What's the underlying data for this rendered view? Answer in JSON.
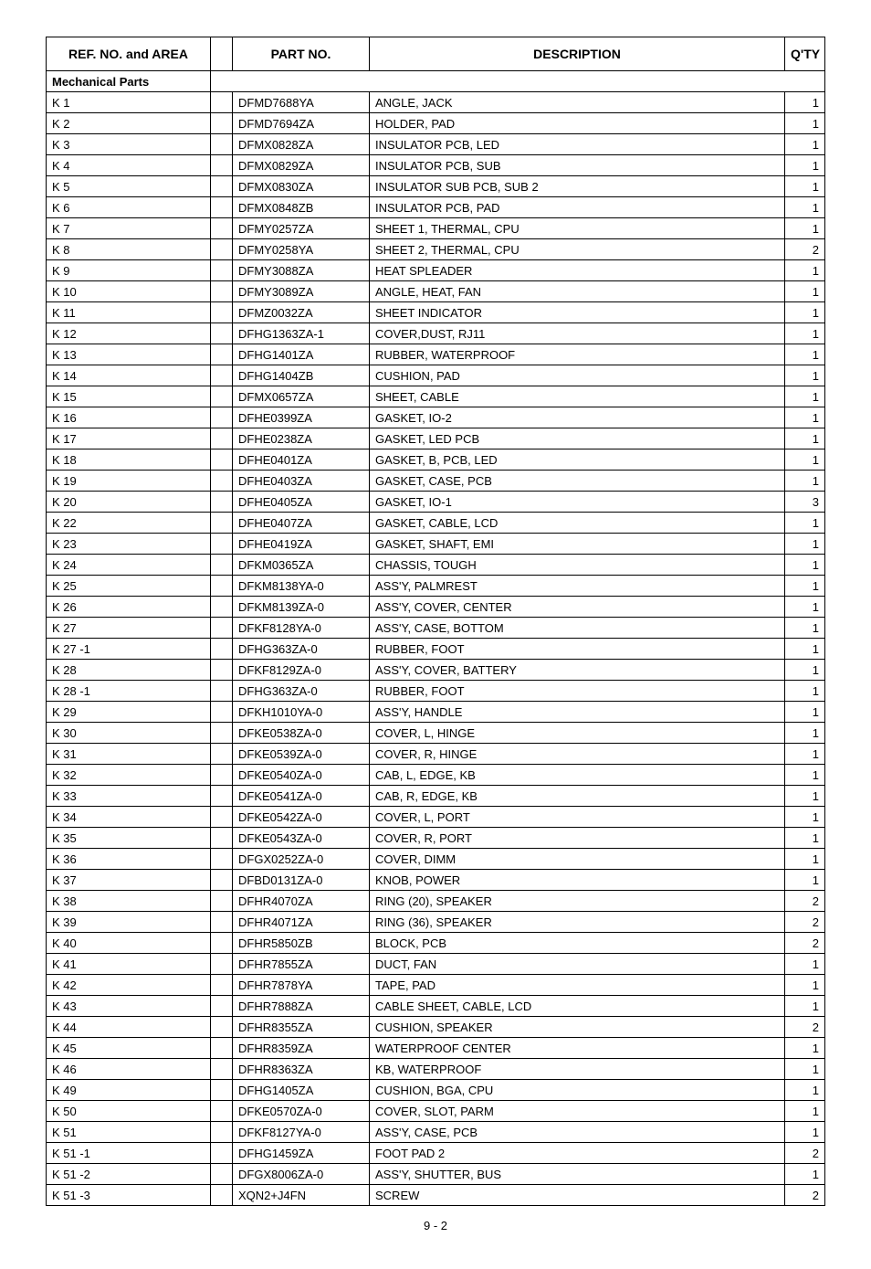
{
  "header": {
    "ref": "REF. NO. and AREA",
    "part": "PART NO.",
    "desc": "DESCRIPTION",
    "qty": "Q'TY"
  },
  "section_title": "Mechanical Parts",
  "page_number": "9 - 2",
  "rows": [
    {
      "ref": "K 1",
      "part": "DFMD7688YA",
      "desc": "ANGLE, JACK",
      "qty": "1"
    },
    {
      "ref": "K 2",
      "part": "DFMD7694ZA",
      "desc": "HOLDER, PAD",
      "qty": "1"
    },
    {
      "ref": "K 3",
      "part": "DFMX0828ZA",
      "desc": "INSULATOR PCB, LED",
      "qty": "1"
    },
    {
      "ref": "K 4",
      "part": "DFMX0829ZA",
      "desc": "INSULATOR PCB, SUB",
      "qty": "1"
    },
    {
      "ref": "K 5",
      "part": "DFMX0830ZA",
      "desc": "INSULATOR SUB PCB, SUB 2",
      "qty": "1"
    },
    {
      "ref": "K 6",
      "part": "DFMX0848ZB",
      "desc": "INSULATOR PCB, PAD",
      "qty": "1"
    },
    {
      "ref": "K 7",
      "part": "DFMY0257ZA",
      "desc": "SHEET 1, THERMAL, CPU",
      "qty": "1"
    },
    {
      "ref": "K 8",
      "part": "DFMY0258YA",
      "desc": "SHEET 2, THERMAL, CPU",
      "qty": "2"
    },
    {
      "ref": "K 9",
      "part": "DFMY3088ZA",
      "desc": "HEAT SPLEADER",
      "qty": "1"
    },
    {
      "ref": "K 10",
      "part": "DFMY3089ZA",
      "desc": "ANGLE, HEAT, FAN",
      "qty": "1"
    },
    {
      "ref": "K 11",
      "part": "DFMZ0032ZA",
      "desc": "SHEET INDICATOR",
      "qty": "1"
    },
    {
      "ref": "K 12",
      "part": "DFHG1363ZA-1",
      "desc": "COVER,DUST, RJ11",
      "qty": "1"
    },
    {
      "ref": "K 13",
      "part": "DFHG1401ZA",
      "desc": "RUBBER, WATERPROOF",
      "qty": "1"
    },
    {
      "ref": "K 14",
      "part": "DFHG1404ZB",
      "desc": "CUSHION, PAD",
      "qty": "1"
    },
    {
      "ref": "K 15",
      "part": "DFMX0657ZA",
      "desc": "SHEET, CABLE",
      "qty": "1"
    },
    {
      "ref": "K 16",
      "part": "DFHE0399ZA",
      "desc": "GASKET, IO-2",
      "qty": "1"
    },
    {
      "ref": "K 17",
      "part": "DFHE0238ZA",
      "desc": "GASKET, LED PCB",
      "qty": "1"
    },
    {
      "ref": "K 18",
      "part": "DFHE0401ZA",
      "desc": "GASKET, B, PCB, LED",
      "qty": "1"
    },
    {
      "ref": "K 19",
      "part": "DFHE0403ZA",
      "desc": "GASKET, CASE, PCB",
      "qty": "1"
    },
    {
      "ref": "K 20",
      "part": "DFHE0405ZA",
      "desc": "GASKET, IO-1",
      "qty": "3"
    },
    {
      "ref": "K 22",
      "part": "DFHE0407ZA",
      "desc": "GASKET, CABLE, LCD",
      "qty": "1"
    },
    {
      "ref": "K 23",
      "part": "DFHE0419ZA",
      "desc": "GASKET, SHAFT, EMI",
      "qty": "1"
    },
    {
      "ref": "K 24",
      "part": "DFKM0365ZA",
      "desc": "CHASSIS, TOUGH",
      "qty": "1"
    },
    {
      "ref": "K 25",
      "part": "DFKM8138YA-0",
      "desc": "ASS'Y, PALMREST",
      "qty": "1"
    },
    {
      "ref": "K 26",
      "part": "DFKM8139ZA-0",
      "desc": "ASS'Y, COVER, CENTER",
      "qty": "1"
    },
    {
      "ref": "K 27",
      "part": "DFKF8128YA-0",
      "desc": "ASS'Y, CASE, BOTTOM",
      "qty": "1"
    },
    {
      "ref": "K 27 -1",
      "part": "DFHG363ZA-0",
      "desc": "RUBBER, FOOT",
      "qty": "1"
    },
    {
      "ref": "K 28",
      "part": "DFKF8129ZA-0",
      "desc": "ASS'Y, COVER, BATTERY",
      "qty": "1"
    },
    {
      "ref": "K 28 -1",
      "part": "DFHG363ZA-0",
      "desc": "RUBBER, FOOT",
      "qty": "1"
    },
    {
      "ref": "K 29",
      "part": "DFKH1010YA-0",
      "desc": "ASS'Y, HANDLE",
      "qty": "1"
    },
    {
      "ref": "K 30",
      "part": "DFKE0538ZA-0",
      "desc": "COVER, L, HINGE",
      "qty": "1"
    },
    {
      "ref": "K 31",
      "part": "DFKE0539ZA-0",
      "desc": "COVER, R, HINGE",
      "qty": "1"
    },
    {
      "ref": "K 32",
      "part": "DFKE0540ZA-0",
      "desc": "CAB, L, EDGE, KB",
      "qty": "1"
    },
    {
      "ref": "K 33",
      "part": "DFKE0541ZA-0",
      "desc": "CAB, R, EDGE, KB",
      "qty": "1"
    },
    {
      "ref": "K 34",
      "part": "DFKE0542ZA-0",
      "desc": "COVER, L, PORT",
      "qty": "1"
    },
    {
      "ref": "K 35",
      "part": "DFKE0543ZA-0",
      "desc": "COVER, R, PORT",
      "qty": "1"
    },
    {
      "ref": "K 36",
      "part": "DFGX0252ZA-0",
      "desc": "COVER, DIMM",
      "qty": "1"
    },
    {
      "ref": "K 37",
      "part": "DFBD0131ZA-0",
      "desc": "KNOB, POWER",
      "qty": "1"
    },
    {
      "ref": "K 38",
      "part": "DFHR4070ZA",
      "desc": "RING (20), SPEAKER",
      "qty": "2"
    },
    {
      "ref": "K 39",
      "part": "DFHR4071ZA",
      "desc": "RING (36), SPEAKER",
      "qty": "2"
    },
    {
      "ref": "K 40",
      "part": "DFHR5850ZB",
      "desc": "BLOCK, PCB",
      "qty": "2"
    },
    {
      "ref": "K 41",
      "part": "DFHR7855ZA",
      "desc": "DUCT, FAN",
      "qty": "1"
    },
    {
      "ref": "K 42",
      "part": "DFHR7878YA",
      "desc": "TAPE, PAD",
      "qty": "1"
    },
    {
      "ref": "K 43",
      "part": "DFHR7888ZA",
      "desc": "CABLE SHEET, CABLE, LCD",
      "qty": "1"
    },
    {
      "ref": "K 44",
      "part": "DFHR8355ZA",
      "desc": "CUSHION, SPEAKER",
      "qty": "2"
    },
    {
      "ref": "K 45",
      "part": "DFHR8359ZA",
      "desc": "WATERPROOF CENTER",
      "qty": "1"
    },
    {
      "ref": "K 46",
      "part": "DFHR8363ZA",
      "desc": "KB, WATERPROOF",
      "qty": "1"
    },
    {
      "ref": "K 49",
      "part": "DFHG1405ZA",
      "desc": "CUSHION, BGA, CPU",
      "qty": "1"
    },
    {
      "ref": "K 50",
      "part": "DFKE0570ZA-0",
      "desc": "COVER, SLOT, PARM",
      "qty": "1"
    },
    {
      "ref": "K 51",
      "part": "DFKF8127YA-0",
      "desc": "ASS'Y, CASE, PCB",
      "qty": "1"
    },
    {
      "ref": "K 51 -1",
      "part": "DFHG1459ZA",
      "desc": "FOOT PAD 2",
      "qty": "2"
    },
    {
      "ref": "K 51 -2",
      "part": "DFGX8006ZA-0",
      "desc": "ASS'Y, SHUTTER, BUS",
      "qty": "1"
    },
    {
      "ref": "K 51 -3",
      "part": "XQN2+J4FN",
      "desc": "SCREW",
      "qty": "2"
    }
  ]
}
